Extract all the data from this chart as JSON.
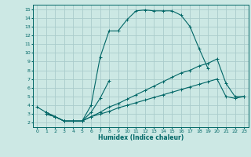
{
  "xlabel": "Humidex (Indice chaleur)",
  "bg_color": "#cce8e4",
  "grid_color": "#aacccc",
  "line_color": "#006666",
  "xlim": [
    -0.5,
    23.5
  ],
  "ylim": [
    1.5,
    15.5
  ],
  "xticks": [
    0,
    1,
    2,
    3,
    4,
    5,
    6,
    7,
    8,
    9,
    10,
    11,
    12,
    13,
    14,
    15,
    16,
    17,
    18,
    19,
    20,
    21,
    22,
    23
  ],
  "yticks": [
    2,
    3,
    4,
    5,
    6,
    7,
    8,
    9,
    10,
    11,
    12,
    13,
    14,
    15
  ],
  "series": [
    {
      "x": [
        0,
        1,
        2,
        3,
        4,
        5,
        6,
        7,
        8,
        9,
        10,
        11,
        12,
        13,
        14,
        15,
        16,
        17,
        18,
        19
      ],
      "y": [
        3.8,
        3.2,
        2.7,
        2.2,
        2.2,
        2.2,
        4.0,
        9.5,
        12.5,
        12.5,
        13.8,
        14.8,
        14.9,
        14.8,
        14.8,
        14.8,
        14.3,
        13.0,
        10.5,
        8.2
      ]
    },
    {
      "x": [
        1,
        2,
        3,
        4,
        5,
        6,
        7,
        8
      ],
      "y": [
        3.2,
        2.7,
        2.2,
        2.2,
        2.2,
        3.2,
        4.8,
        6.8
      ]
    },
    {
      "x": [
        1,
        2,
        3,
        4,
        5,
        6,
        7,
        8,
        9,
        10,
        11,
        12,
        13,
        14,
        15,
        16,
        17,
        18,
        19,
        20,
        21,
        22,
        23
      ],
      "y": [
        3.0,
        2.7,
        2.2,
        2.2,
        2.2,
        2.7,
        3.2,
        3.8,
        4.2,
        4.7,
        5.2,
        5.7,
        6.2,
        6.7,
        7.2,
        7.7,
        8.0,
        8.5,
        8.8,
        9.3,
        6.5,
        5.0,
        5.0
      ]
    },
    {
      "x": [
        1,
        2,
        3,
        4,
        5,
        6,
        7,
        8,
        9,
        10,
        11,
        12,
        13,
        14,
        15,
        16,
        17,
        18,
        19,
        20,
        21,
        22,
        23
      ],
      "y": [
        3.0,
        2.7,
        2.2,
        2.2,
        2.2,
        2.7,
        3.0,
        3.3,
        3.7,
        4.0,
        4.3,
        4.6,
        4.9,
        5.2,
        5.5,
        5.8,
        6.1,
        6.4,
        6.7,
        7.0,
        5.0,
        4.8,
        5.0
      ]
    }
  ]
}
